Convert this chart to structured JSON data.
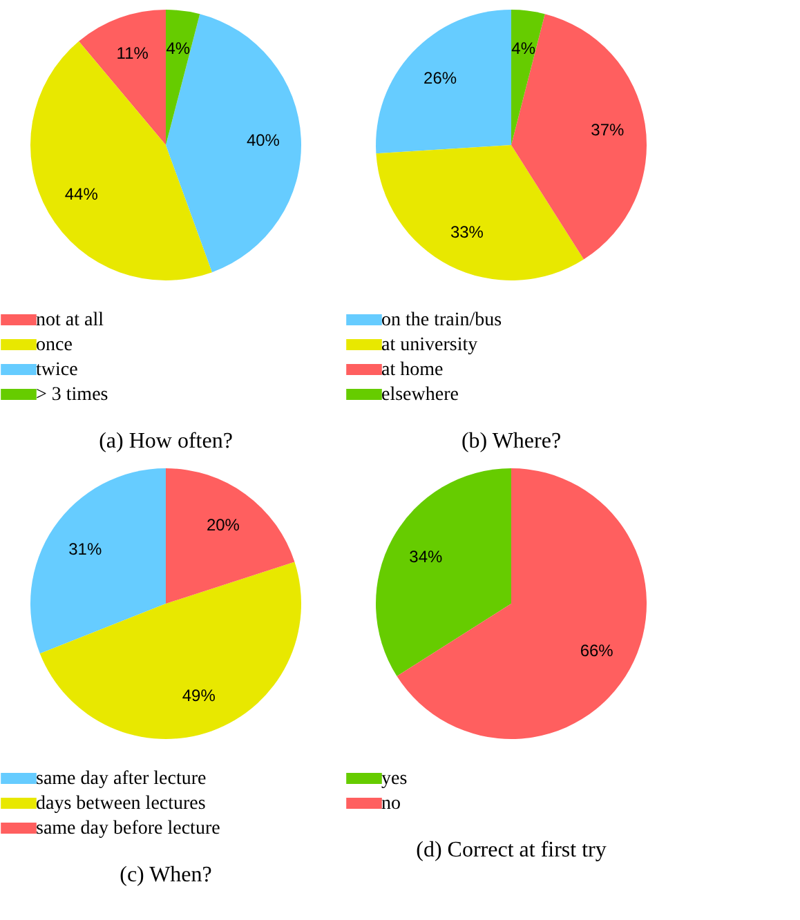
{
  "chart_data": [
    {
      "type": "pie",
      "title": "(a) How often?",
      "categories": [
        "not at all",
        "once",
        "twice",
        "> 3 times"
      ],
      "values": [
        11,
        44,
        40,
        4
      ],
      "colors": [
        "#ff5f5f",
        "#e8e800",
        "#66ccff",
        "#66cc00"
      ],
      "value_labels": [
        "11%",
        "44%",
        "40%",
        "4%"
      ],
      "legend": "bottom"
    },
    {
      "type": "pie",
      "title": "(b) Where?",
      "categories": [
        "on the train/bus",
        "at university",
        "at home",
        "elsewhere"
      ],
      "values": [
        26,
        33,
        37,
        4
      ],
      "colors": [
        "#66ccff",
        "#e8e800",
        "#ff5f5f",
        "#66cc00"
      ],
      "value_labels": [
        "26%",
        "33%",
        "37%",
        "4%"
      ],
      "legend": "bottom"
    },
    {
      "type": "pie",
      "title": "(c) When?",
      "categories": [
        "same day after lecture",
        "days between lectures",
        "same day before lecture"
      ],
      "values": [
        31,
        49,
        20
      ],
      "colors": [
        "#66ccff",
        "#e8e800",
        "#ff5f5f"
      ],
      "value_labels": [
        "31%",
        "49%",
        "20%"
      ],
      "legend": "bottom"
    },
    {
      "type": "pie",
      "title": "(d) Correct at first try",
      "categories": [
        "yes",
        "no"
      ],
      "values": [
        34,
        66
      ],
      "colors": [
        "#66cc00",
        "#ff5f5f"
      ],
      "value_labels": [
        "34%",
        "66%"
      ],
      "legend": "bottom"
    }
  ]
}
